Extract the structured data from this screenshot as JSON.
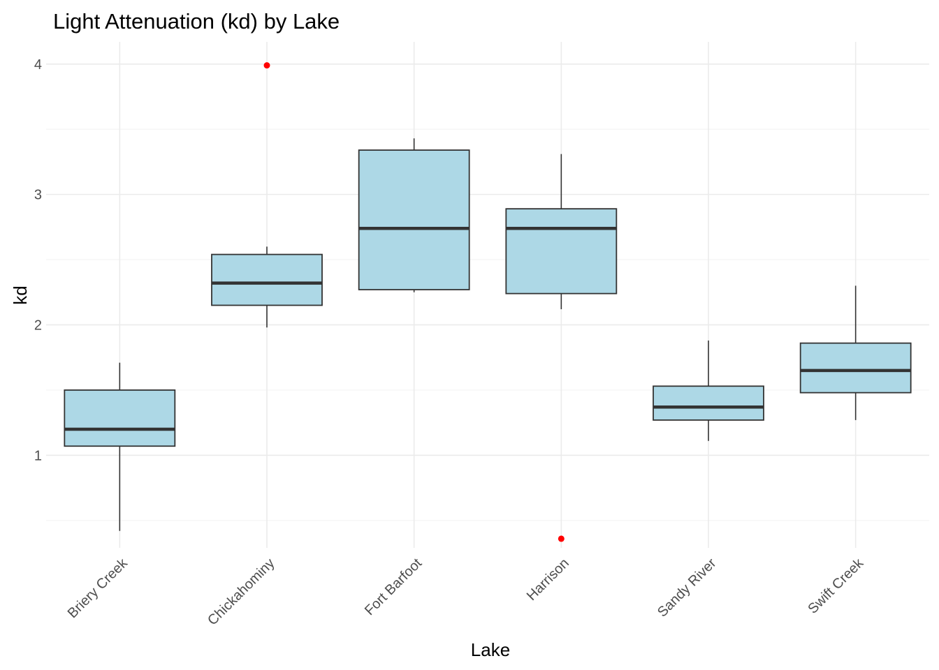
{
  "chart_data": {
    "type": "boxplot",
    "title": "Light Attenuation (kd) by Lake",
    "xlabel": "Lake",
    "ylabel": "kd",
    "categories": [
      "Briery Creek",
      "Chickahominy",
      "Fort Barfoot",
      "Harrison",
      "Sandy River",
      "Swift Creek"
    ],
    "ylim": [
      0.29,
      4.17
    ],
    "yticks": [
      1,
      2,
      3,
      4
    ],
    "y_minor_ticks": [
      0.5,
      1.5,
      2.5,
      3.5
    ],
    "grid": true,
    "legend": "none",
    "box_fill": "#add8e6",
    "box_stroke": "#333333",
    "outlier_color": "#ff0000",
    "series": [
      {
        "category": "Briery Creek",
        "whisker_low": 0.42,
        "q1": 1.07,
        "median": 1.2,
        "q3": 1.5,
        "whisker_high": 1.71,
        "outliers": []
      },
      {
        "category": "Chickahominy",
        "whisker_low": 1.98,
        "q1": 2.15,
        "median": 2.32,
        "q3": 2.54,
        "whisker_high": 2.6,
        "outliers": [
          3.99
        ]
      },
      {
        "category": "Fort Barfoot",
        "whisker_low": 2.25,
        "q1": 2.27,
        "median": 2.74,
        "q3": 3.34,
        "whisker_high": 3.43,
        "outliers": []
      },
      {
        "category": "Harrison",
        "whisker_low": 2.12,
        "q1": 2.24,
        "median": 2.74,
        "q3": 2.89,
        "whisker_high": 3.31,
        "outliers": [
          0.36
        ]
      },
      {
        "category": "Sandy River",
        "whisker_low": 1.11,
        "q1": 1.27,
        "median": 1.37,
        "q3": 1.53,
        "whisker_high": 1.88,
        "outliers": []
      },
      {
        "category": "Swift Creek",
        "whisker_low": 1.27,
        "q1": 1.48,
        "median": 1.65,
        "q3": 1.86,
        "whisker_high": 2.3,
        "outliers": []
      }
    ]
  }
}
